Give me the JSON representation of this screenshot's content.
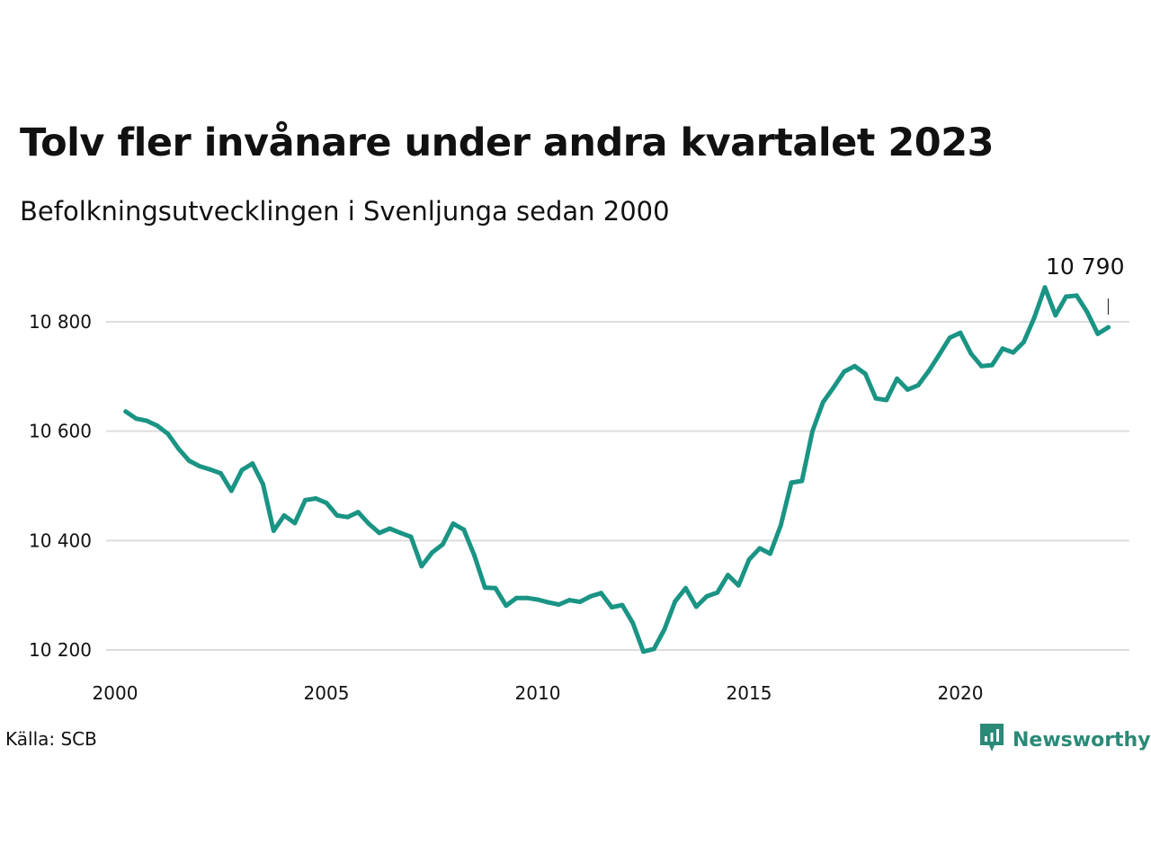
{
  "title": "Tolv fler invånare under andra kvartalet 2023",
  "subtitle": "Befolkningsutvecklingen i Svenljunga sedan 2000",
  "source": "Källa: SCB",
  "brand": {
    "name": "Newsworthy",
    "icon": "newsworthy-logo-icon"
  },
  "colors": {
    "line": "#1a9484",
    "grid": "#dddddd",
    "brand": "#2a8a78"
  },
  "chart_data": {
    "type": "line",
    "title": "Tolv fler invånare under andra kvartalet 2023",
    "subtitle": "Befolkningsutvecklingen i Svenljunga sedan 2000",
    "xlabel": "",
    "ylabel": "",
    "xlim": [
      2000,
      2024.4
    ],
    "ylim": [
      10190,
      10870
    ],
    "x_ticks": [
      2000,
      2005,
      2010,
      2015,
      2020
    ],
    "x_tick_labels": [
      "2000",
      "2005",
      "2010",
      "2015",
      "2020"
    ],
    "y_ticks": [
      10200,
      10400,
      10600,
      10800
    ],
    "y_tick_labels": [
      "10 200",
      "10 400",
      "10 600",
      "10 800"
    ],
    "grid": "horizontal",
    "end_label": "10 790",
    "series": [
      {
        "values": [
          [
            2000.25,
            10636
          ],
          [
            2000.5,
            10623
          ],
          [
            2000.75,
            10619
          ],
          [
            2001.0,
            10610
          ],
          [
            2001.25,
            10595
          ],
          [
            2001.5,
            10568
          ],
          [
            2001.75,
            10546
          ],
          [
            2002.0,
            10536
          ],
          [
            2002.25,
            10530
          ],
          [
            2002.5,
            10523
          ],
          [
            2002.75,
            10491
          ],
          [
            2003.0,
            10529
          ],
          [
            2003.25,
            10541
          ],
          [
            2003.5,
            10503
          ],
          [
            2003.75,
            10418
          ],
          [
            2004.0,
            10446
          ],
          [
            2004.25,
            10432
          ],
          [
            2004.5,
            10474
          ],
          [
            2004.75,
            10477
          ],
          [
            2005.0,
            10469
          ],
          [
            2005.25,
            10446
          ],
          [
            2005.5,
            10443
          ],
          [
            2005.75,
            10452
          ],
          [
            2006.0,
            10431
          ],
          [
            2006.25,
            10414
          ],
          [
            2006.5,
            10422
          ],
          [
            2006.75,
            10414
          ],
          [
            2007.0,
            10407
          ],
          [
            2007.25,
            10353
          ],
          [
            2007.5,
            10378
          ],
          [
            2007.75,
            10393
          ],
          [
            2008.0,
            10431
          ],
          [
            2008.25,
            10420
          ],
          [
            2008.5,
            10373
          ],
          [
            2008.75,
            10314
          ],
          [
            2009.0,
            10313
          ],
          [
            2009.25,
            10281
          ],
          [
            2009.5,
            10295
          ],
          [
            2009.75,
            10295
          ],
          [
            2010.0,
            10292
          ],
          [
            2010.25,
            10287
          ],
          [
            2010.5,
            10283
          ],
          [
            2010.75,
            10291
          ],
          [
            2011.0,
            10288
          ],
          [
            2011.25,
            10298
          ],
          [
            2011.5,
            10304
          ],
          [
            2011.75,
            10278
          ],
          [
            2012.0,
            10282
          ],
          [
            2012.25,
            10249
          ],
          [
            2012.5,
            10197
          ],
          [
            2012.75,
            10202
          ],
          [
            2013.0,
            10238
          ],
          [
            2013.25,
            10289
          ],
          [
            2013.5,
            10313
          ],
          [
            2013.75,
            10279
          ],
          [
            2014.0,
            10298
          ],
          [
            2014.25,
            10305
          ],
          [
            2014.5,
            10337
          ],
          [
            2014.75,
            10318
          ],
          [
            2015.0,
            10365
          ],
          [
            2015.25,
            10386
          ],
          [
            2015.5,
            10376
          ],
          [
            2015.75,
            10428
          ],
          [
            2016.0,
            10506
          ],
          [
            2016.25,
            10509
          ],
          [
            2016.5,
            10600
          ],
          [
            2016.75,
            10653
          ],
          [
            2017.0,
            10680
          ],
          [
            2017.25,
            10709
          ],
          [
            2017.5,
            10719
          ],
          [
            2017.75,
            10705
          ],
          [
            2018.0,
            10660
          ],
          [
            2018.25,
            10657
          ],
          [
            2018.5,
            10696
          ],
          [
            2018.75,
            10676
          ],
          [
            2019.0,
            10684
          ],
          [
            2019.25,
            10710
          ],
          [
            2019.5,
            10740
          ],
          [
            2019.75,
            10771
          ],
          [
            2020.0,
            10780
          ],
          [
            2020.25,
            10742
          ],
          [
            2020.5,
            10719
          ],
          [
            2020.75,
            10721
          ],
          [
            2021.0,
            10751
          ],
          [
            2021.25,
            10744
          ],
          [
            2021.5,
            10763
          ],
          [
            2021.75,
            10808
          ],
          [
            2022.0,
            10863
          ],
          [
            2022.25,
            10812
          ],
          [
            2022.5,
            10846
          ],
          [
            2022.75,
            10848
          ],
          [
            2023.0,
            10818
          ],
          [
            2023.25,
            10778
          ],
          [
            2023.5,
            10790
          ]
        ]
      }
    ]
  }
}
